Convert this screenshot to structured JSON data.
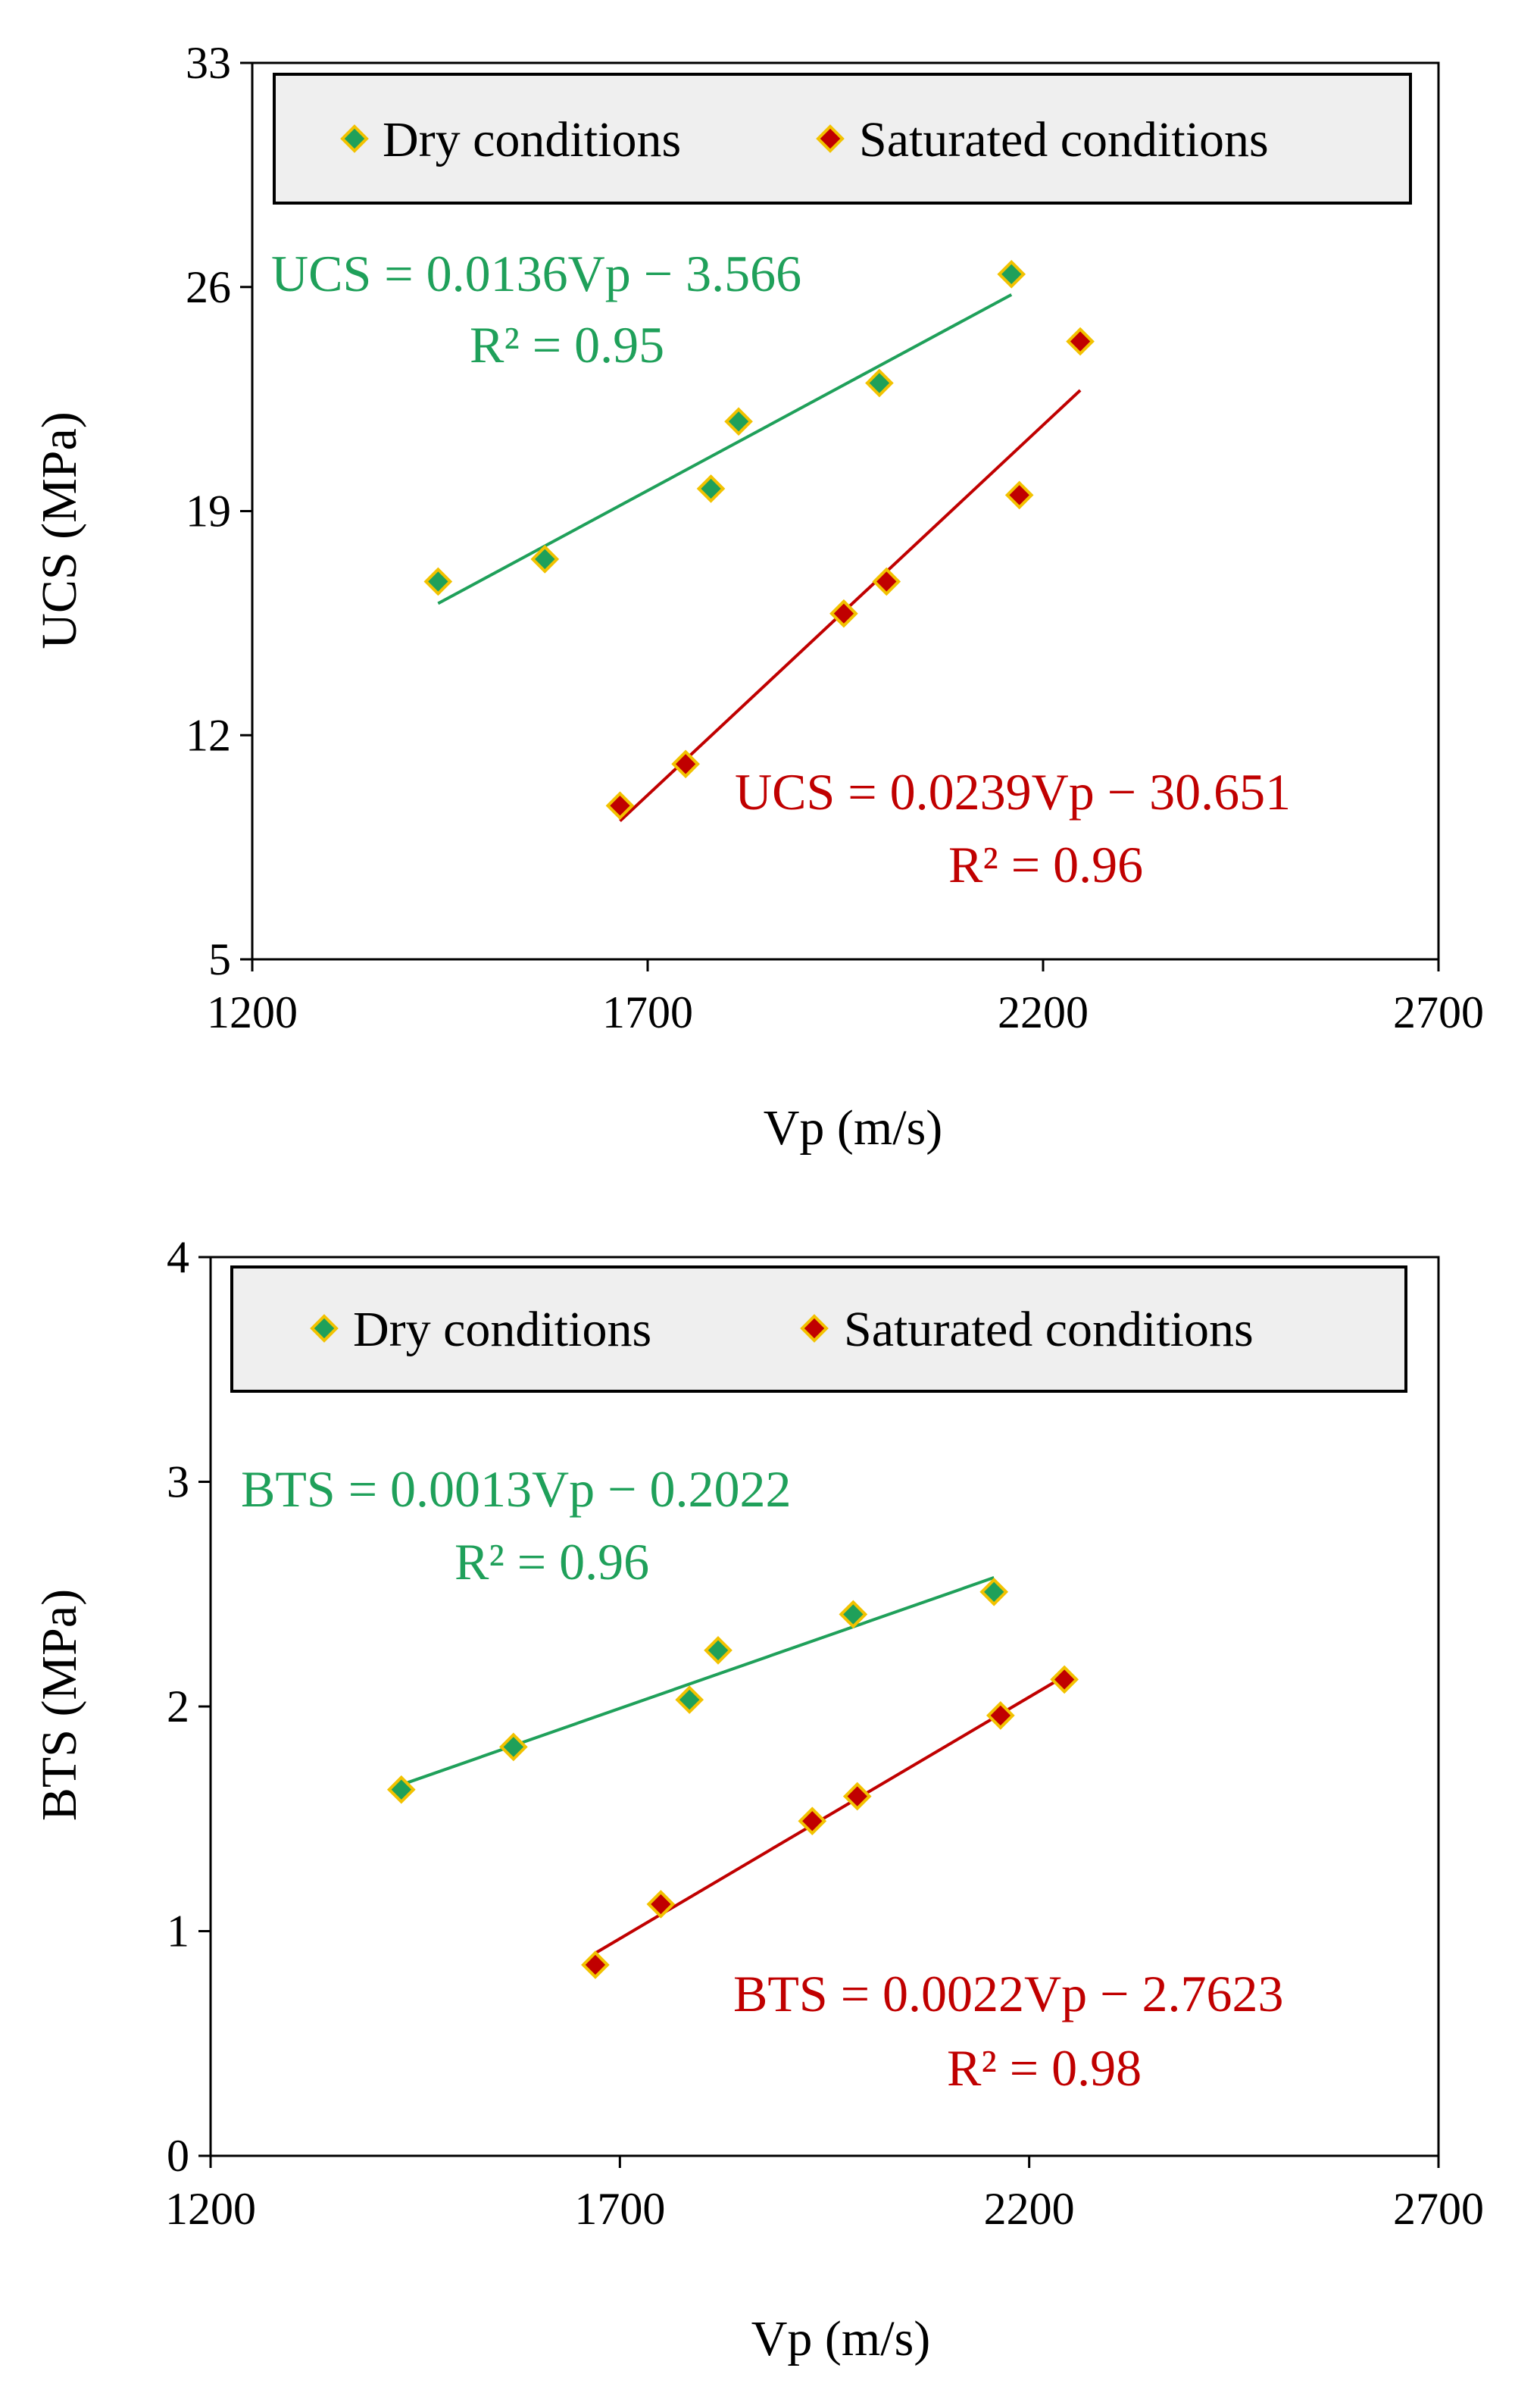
{
  "chart_data": [
    {
      "type": "scatter",
      "title": "",
      "xlabel": "Vp (m/s)",
      "ylabel": "UCS (MPa)",
      "xlim": [
        1200,
        2700
      ],
      "ylim": [
        5,
        33
      ],
      "xticks": [
        "1200",
        "1700",
        "2200",
        "2700"
      ],
      "yticks": [
        "5",
        "12",
        "19",
        "26",
        "33"
      ],
      "grid": false,
      "legend_position": "top",
      "series": [
        {
          "name": "Dry conditions",
          "color": "#1fa05a",
          "edge_color": "#f2c200",
          "x": [
            1435,
            1570,
            1780,
            1815,
            1993,
            2160
          ],
          "y": [
            16.8,
            17.5,
            19.7,
            21.8,
            23.0,
            26.4
          ],
          "trendline": {
            "x": [
              1435,
              2160
            ]
          },
          "equation": "UCS = 0.0136Vp − 3.566",
          "r2": "R² = 0.95"
        },
        {
          "name": "Saturated conditions",
          "color": "#c00000",
          "edge_color": "#f2c200",
          "x": [
            1665,
            1748,
            1948,
            2002,
            2170,
            2247
          ],
          "y": [
            9.8,
            11.1,
            15.8,
            16.8,
            19.5,
            24.3
          ],
          "trendline": {
            "x": [
              1665,
              2247
            ]
          },
          "equation": "UCS = 0.0239Vp − 30.651",
          "r2": "R² = 0.96"
        }
      ]
    },
    {
      "type": "scatter",
      "title": "",
      "xlabel": "Vp (m/s)",
      "ylabel": "BTS (MPa)",
      "xlim": [
        1200,
        2700
      ],
      "ylim": [
        0,
        4
      ],
      "xticks": [
        "1200",
        "1700",
        "2200",
        "2700"
      ],
      "yticks": [
        "0",
        "1",
        "2",
        "3",
        "4"
      ],
      "grid": false,
      "legend_position": "top",
      "series": [
        {
          "name": "Dry conditions",
          "color": "#1fa05a",
          "edge_color": "#f2c200",
          "x": [
            1433,
            1570,
            1785,
            1820,
            1985,
            2157
          ],
          "y": [
            1.63,
            1.82,
            2.03,
            2.25,
            2.41,
            2.51
          ],
          "trendline": {
            "x": [
              1433,
              2157
            ]
          },
          "equation": "BTS = 0.0013Vp − 0.2022",
          "r2": "R² = 0.96"
        },
        {
          "name": "Saturated conditions",
          "color": "#c00000",
          "edge_color": "#f2c200",
          "x": [
            1670,
            1750,
            1935,
            1990,
            2165,
            2243
          ],
          "y": [
            0.85,
            1.12,
            1.49,
            1.6,
            1.96,
            2.12
          ],
          "trendline": {
            "x": [
              1670,
              2243
            ]
          },
          "equation": "BTS = 0.0022Vp − 2.7623",
          "r2": "R² = 0.98"
        }
      ]
    }
  ]
}
